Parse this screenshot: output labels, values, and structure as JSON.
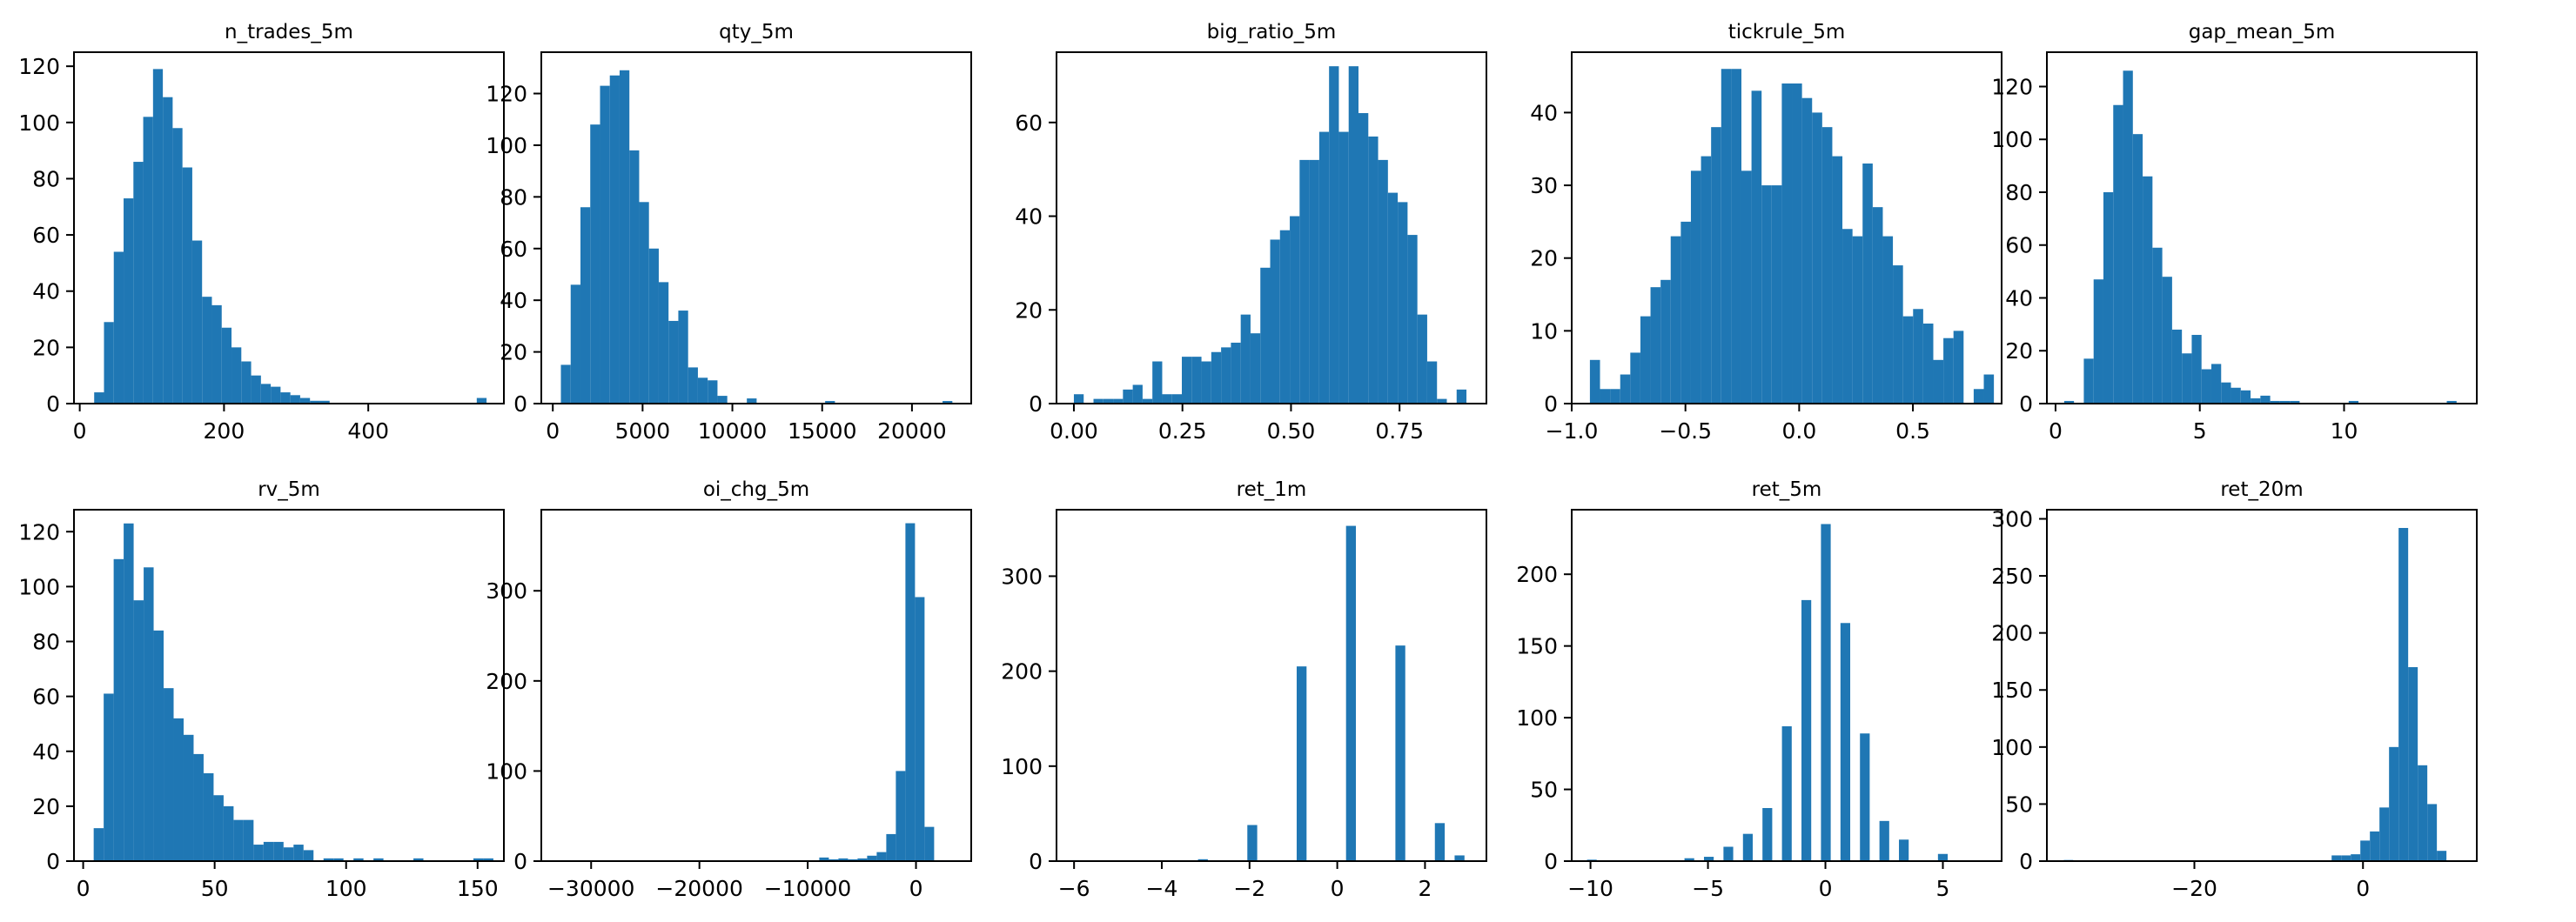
{
  "chart_data": [
    {
      "type": "bar",
      "title": "n_trades_5m",
      "xlim": [
        -8,
        588
      ],
      "ylim": [
        0,
        125
      ],
      "xticks": [
        {
          "value": 0,
          "label": "0"
        },
        {
          "value": 200,
          "label": "200"
        },
        {
          "value": 400,
          "label": "400"
        }
      ],
      "yticks": [
        {
          "value": 0,
          "label": "0"
        },
        {
          "value": 20,
          "label": "20"
        },
        {
          "value": 40,
          "label": "40"
        },
        {
          "value": 60,
          "label": "60"
        },
        {
          "value": 80,
          "label": "80"
        },
        {
          "value": 100,
          "label": "100"
        },
        {
          "value": 120,
          "label": "120"
        }
      ],
      "bin_start": 20,
      "bin_width": 13.6,
      "counts": [
        4,
        29,
        54,
        73,
        86,
        102,
        119,
        109,
        98,
        84,
        58,
        38,
        35,
        27,
        20,
        15,
        10,
        7,
        6,
        4,
        3,
        2,
        1,
        1,
        0,
        0,
        0,
        0,
        0,
        0,
        0,
        0,
        0,
        0,
        0,
        0,
        0,
        0,
        0,
        2
      ]
    },
    {
      "type": "bar",
      "title": "qty_5m",
      "xlim": [
        -640,
        23300
      ],
      "ylim": [
        0,
        136
      ],
      "xticks": [
        {
          "value": 0,
          "label": "0"
        },
        {
          "value": 5000,
          "label": "5000"
        },
        {
          "value": 10000,
          "label": "10000"
        },
        {
          "value": 15000,
          "label": "15000"
        },
        {
          "value": 20000,
          "label": "20000"
        }
      ],
      "yticks": [
        {
          "value": 0,
          "label": "0"
        },
        {
          "value": 20,
          "label": "20"
        },
        {
          "value": 40,
          "label": "40"
        },
        {
          "value": 60,
          "label": "60"
        },
        {
          "value": 80,
          "label": "80"
        },
        {
          "value": 100,
          "label": "100"
        },
        {
          "value": 120,
          "label": "120"
        }
      ],
      "bin_start": 450,
      "bin_width": 545,
      "counts": [
        15,
        46,
        76,
        108,
        123,
        127,
        129,
        98,
        78,
        60,
        47,
        32,
        36,
        14,
        10,
        9,
        3,
        0,
        0,
        2,
        0,
        0,
        0,
        0,
        0,
        0,
        0,
        1,
        0,
        0,
        0,
        0,
        0,
        0,
        0,
        0,
        0,
        0,
        0,
        1
      ]
    },
    {
      "type": "bar",
      "title": "big_ratio_5m",
      "xlim": [
        -0.04,
        0.95
      ],
      "ylim": [
        0,
        75
      ],
      "xticks": [
        {
          "value": 0,
          "label": "0.00"
        },
        {
          "value": 0.25,
          "label": "0.25"
        },
        {
          "value": 0.5,
          "label": "0.50"
        },
        {
          "value": 0.75,
          "label": "0.75"
        }
      ],
      "yticks": [
        {
          "value": 0,
          "label": "0"
        },
        {
          "value": 20,
          "label": "20"
        },
        {
          "value": 40,
          "label": "40"
        },
        {
          "value": 60,
          "label": "60"
        }
      ],
      "bin_start": 0,
      "bin_width": 0.0226,
      "counts": [
        2,
        0,
        1,
        1,
        1,
        3,
        4,
        1,
        9,
        2,
        2,
        10,
        10,
        9,
        11,
        12,
        13,
        19,
        15,
        29,
        35,
        37,
        40,
        52,
        52,
        58,
        72,
        58,
        72,
        62,
        57,
        52,
        45,
        43,
        36,
        19,
        9,
        1,
        0,
        3
      ]
    },
    {
      "type": "bar",
      "title": "tickrule_5m",
      "xlim": [
        -1.0,
        0.89
      ],
      "ylim": [
        0,
        48.3
      ],
      "xticks": [
        {
          "value": -1.0,
          "label": "−1.0"
        },
        {
          "value": -0.5,
          "label": "−0.5"
        },
        {
          "value": 0.0,
          "label": "0.0"
        },
        {
          "value": 0.5,
          "label": "0.5"
        }
      ],
      "yticks": [
        {
          "value": 0,
          "label": "0"
        },
        {
          "value": 10,
          "label": "10"
        },
        {
          "value": 20,
          "label": "20"
        },
        {
          "value": 30,
          "label": "30"
        },
        {
          "value": 40,
          "label": "40"
        }
      ],
      "bin_start": -0.92,
      "bin_width": 0.0444,
      "counts": [
        6,
        2,
        2,
        4,
        7,
        12,
        16,
        17,
        23,
        25,
        32,
        34,
        38,
        46,
        46,
        32,
        43,
        30,
        30,
        44,
        44,
        42,
        40,
        38,
        34,
        24,
        23,
        33,
        27,
        23,
        19,
        12,
        13,
        11,
        6,
        9,
        10,
        0,
        2,
        4
      ]
    },
    {
      "type": "bar",
      "title": "gap_mean_5m",
      "xlim": [
        -0.3,
        14.6
      ],
      "ylim": [
        0,
        133
      ],
      "xticks": [
        {
          "value": 0,
          "label": "0"
        },
        {
          "value": 5,
          "label": "5"
        },
        {
          "value": 10,
          "label": "10"
        }
      ],
      "yticks": [
        {
          "value": 0,
          "label": "0"
        },
        {
          "value": 20,
          "label": "20"
        },
        {
          "value": 40,
          "label": "40"
        },
        {
          "value": 60,
          "label": "60"
        },
        {
          "value": 80,
          "label": "80"
        },
        {
          "value": 100,
          "label": "100"
        },
        {
          "value": 120,
          "label": "120"
        }
      ],
      "bin_start": 0.3,
      "bin_width": 0.34,
      "counts": [
        1,
        0,
        17,
        47,
        80,
        113,
        126,
        102,
        86,
        59,
        48,
        28,
        19,
        26,
        13,
        15,
        8,
        6,
        5,
        2,
        3,
        1,
        1,
        1,
        0,
        0,
        0,
        0,
        0,
        1,
        0,
        0,
        0,
        0,
        0,
        0,
        0,
        0,
        0,
        1
      ]
    },
    {
      "type": "bar",
      "title": "rv_5m",
      "xlim": [
        -3.5,
        160
      ],
      "ylim": [
        0,
        128
      ],
      "xticks": [
        {
          "value": 0,
          "label": "0"
        },
        {
          "value": 50,
          "label": "50"
        },
        {
          "value": 100,
          "label": "100"
        },
        {
          "value": 150,
          "label": "150"
        }
      ],
      "yticks": [
        {
          "value": 0,
          "label": "0"
        },
        {
          "value": 20,
          "label": "20"
        },
        {
          "value": 40,
          "label": "40"
        },
        {
          "value": 60,
          "label": "60"
        },
        {
          "value": 80,
          "label": "80"
        },
        {
          "value": 100,
          "label": "100"
        },
        {
          "value": 120,
          "label": "120"
        }
      ],
      "bin_start": 4,
      "bin_width": 3.8,
      "counts": [
        12,
        61,
        110,
        123,
        95,
        107,
        84,
        63,
        52,
        46,
        39,
        32,
        24,
        20,
        15,
        15,
        6,
        7,
        7,
        5,
        6,
        4,
        0,
        1,
        1,
        0,
        1,
        0,
        1,
        0,
        0,
        0,
        1,
        0,
        0,
        0,
        0,
        0,
        1,
        1
      ]
    },
    {
      "type": "bar",
      "title": "oi_chg_5m",
      "xlim": [
        -34600,
        5100
      ],
      "ylim": [
        0,
        390
      ],
      "xticks": [
        {
          "value": -30000,
          "label": "−30000"
        },
        {
          "value": -20000,
          "label": "−20000"
        },
        {
          "value": -10000,
          "label": "−10000"
        },
        {
          "value": 0,
          "label": "0"
        }
      ],
      "yticks": [
        {
          "value": 0,
          "label": "0"
        },
        {
          "value": 100,
          "label": "100"
        },
        {
          "value": 200,
          "label": "200"
        },
        {
          "value": 300,
          "label": "300"
        }
      ],
      "bin_start": -32800,
      "bin_width": 884,
      "counts": [
        1,
        0,
        0,
        0,
        0,
        0,
        0,
        0,
        0,
        0,
        0,
        0,
        0,
        0,
        0,
        0,
        0,
        0,
        0,
        0,
        0,
        0,
        0,
        0,
        1,
        1,
        0,
        4,
        2,
        3,
        2,
        3,
        6,
        10,
        30,
        100,
        375,
        293,
        38,
        1
      ]
    },
    {
      "type": "bar",
      "title": "ret_1m",
      "xlim": [
        -6.4,
        3.4
      ],
      "ylim": [
        0,
        370
      ],
      "xticks": [
        {
          "value": -6,
          "label": "−6"
        },
        {
          "value": -4,
          "label": "−4"
        },
        {
          "value": -2,
          "label": "−2"
        },
        {
          "value": 0,
          "label": "0"
        },
        {
          "value": 2,
          "label": "2"
        }
      ],
      "yticks": [
        {
          "value": 0,
          "label": "0"
        },
        {
          "value": 100,
          "label": "100"
        },
        {
          "value": 200,
          "label": "200"
        },
        {
          "value": 300,
          "label": "300"
        }
      ],
      "bin_start": -6.1,
      "bin_width": 0.225,
      "counts": [
        1,
        0,
        0,
        0,
        0,
        0,
        0,
        0,
        0,
        0,
        0,
        0,
        0,
        2,
        0,
        0,
        0,
        0,
        38,
        0,
        0,
        0,
        0,
        205,
        0,
        0,
        0,
        0,
        353,
        0,
        0,
        0,
        0,
        227,
        0,
        0,
        0,
        40,
        0,
        6
      ]
    },
    {
      "type": "bar",
      "title": "ret_5m",
      "xlim": [
        -10.8,
        7.5
      ],
      "ylim": [
        0,
        245
      ],
      "xticks": [
        {
          "value": -10,
          "label": "−10"
        },
        {
          "value": -5,
          "label": "−5"
        },
        {
          "value": 0,
          "label": "0"
        },
        {
          "value": 5,
          "label": "5"
        }
      ],
      "yticks": [
        {
          "value": 0,
          "label": "0"
        },
        {
          "value": 50,
          "label": "50"
        },
        {
          "value": 100,
          "label": "100"
        },
        {
          "value": 150,
          "label": "150"
        },
        {
          "value": 200,
          "label": "200"
        }
      ],
      "bin_start": -10.15,
      "bin_width": 0.415,
      "counts": [
        1,
        0,
        0,
        0,
        0,
        0,
        0,
        0,
        0,
        0,
        2,
        0,
        3,
        0,
        10,
        0,
        19,
        0,
        37,
        0,
        94,
        0,
        182,
        0,
        235,
        0,
        166,
        0,
        89,
        0,
        28,
        0,
        15,
        0,
        0,
        0,
        5,
        0,
        0,
        0
      ]
    },
    {
      "type": "bar",
      "title": "ret_20m",
      "xlim": [
        -37.5,
        13.5
      ],
      "ylim": [
        0,
        308
      ],
      "xticks": [
        {
          "value": -20,
          "label": "−20"
        },
        {
          "value": 0,
          "label": "0"
        }
      ],
      "yticks": [
        {
          "value": 0,
          "label": "0"
        },
        {
          "value": 50,
          "label": "50"
        },
        {
          "value": 100,
          "label": "100"
        },
        {
          "value": 150,
          "label": "150"
        },
        {
          "value": 200,
          "label": "200"
        },
        {
          "value": 250,
          "label": "250"
        },
        {
          "value": 300,
          "label": "300"
        }
      ],
      "bin_start": -35.5,
      "bin_width": 1.135,
      "counts": [
        1,
        0,
        0,
        0,
        0,
        0,
        0,
        0,
        0,
        0,
        0,
        0,
        0,
        0,
        0,
        0,
        0,
        0,
        0,
        0,
        0,
        0,
        0,
        0,
        0,
        0,
        0,
        0,
        5,
        5,
        6,
        18,
        26,
        47,
        100,
        292,
        170,
        84,
        50,
        9
      ]
    }
  ],
  "style": {
    "bar_color": "#1f77b4",
    "axis_color": "#000000",
    "background": "#ffffff"
  }
}
